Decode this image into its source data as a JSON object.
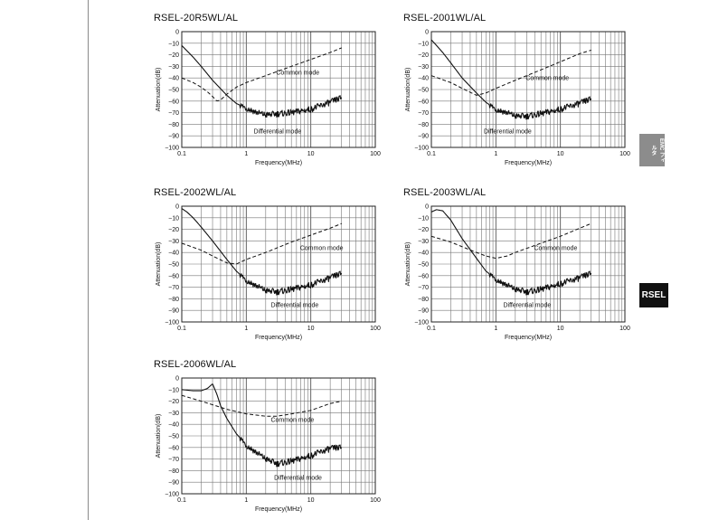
{
  "side_tabs": {
    "category": "EMC フィルタ",
    "series": "RSEL"
  },
  "chart_data": [
    {
      "type": "line",
      "title": "RSEL-20R5WL/AL",
      "xlabel": "Frequency(MHz)",
      "ylabel": "Attenuation(dB)",
      "xscale": "log",
      "xlim": [
        0.1,
        100
      ],
      "ylim": [
        -100,
        0
      ],
      "xticks": [
        "0.1",
        "1",
        "10",
        "100"
      ],
      "yticks": [
        "0",
        "−10",
        "−20",
        "−30",
        "−40",
        "−50",
        "−60",
        "−70",
        "−80",
        "−90",
        "−100"
      ],
      "series": [
        {
          "name": "Common mode",
          "style": "dashed",
          "x": [
            0.1,
            0.15,
            0.2,
            0.25,
            0.3,
            0.35,
            0.4,
            0.5,
            0.7,
            1,
            2,
            5,
            10,
            20,
            30
          ],
          "y": [
            -40,
            -44,
            -48,
            -52,
            -56,
            -60,
            -59,
            -54,
            -48,
            -44,
            -38,
            -30,
            -24,
            -18,
            -14
          ]
        },
        {
          "name": "Differential mode",
          "style": "solid",
          "x": [
            0.1,
            0.15,
            0.2,
            0.3,
            0.5,
            0.7,
            1,
            1.5,
            2,
            3,
            5,
            10,
            20,
            30
          ],
          "y": [
            -12,
            -22,
            -30,
            -42,
            -55,
            -62,
            -66,
            -70,
            -72,
            -71,
            -70,
            -67,
            -61,
            -57
          ]
        }
      ],
      "annotations": [
        {
          "text": "Common mode",
          "x": 2.9,
          "y": -35
        },
        {
          "text": "Differential mode",
          "x": 1.3,
          "y": -86
        }
      ]
    },
    {
      "type": "line",
      "title": "RSEL-2001WL/AL",
      "xlabel": "Frequency(MHz)",
      "ylabel": "Attenuation(dB)",
      "xscale": "log",
      "xlim": [
        0.1,
        100
      ],
      "ylim": [
        -100,
        0
      ],
      "xticks": [
        "0.1",
        "1",
        "10",
        "100"
      ],
      "yticks": [
        "0",
        "−10",
        "−20",
        "−30",
        "−40",
        "−50",
        "−60",
        "−70",
        "−80",
        "−90",
        "−100"
      ],
      "series": [
        {
          "name": "Common mode",
          "style": "dashed",
          "x": [
            0.1,
            0.2,
            0.3,
            0.5,
            0.7,
            1,
            2,
            5,
            10,
            20,
            30
          ],
          "y": [
            -38,
            -44,
            -49,
            -55,
            -53,
            -49,
            -42,
            -33,
            -26,
            -19,
            -16
          ]
        },
        {
          "name": "Differential mode",
          "style": "solid",
          "x": [
            0.1,
            0.15,
            0.2,
            0.3,
            0.5,
            0.7,
            1,
            1.5,
            2,
            3,
            5,
            10,
            20,
            30
          ],
          "y": [
            -7,
            -18,
            -27,
            -40,
            -53,
            -61,
            -67,
            -70,
            -73,
            -73,
            -71,
            -67,
            -62,
            -58
          ]
        }
      ],
      "annotations": [
        {
          "text": "Common mode",
          "x": 2.9,
          "y": -40
        },
        {
          "text": "Differential mode",
          "x": 0.65,
          "y": -86
        }
      ]
    },
    {
      "type": "line",
      "title": "RSEL-2002WL/AL",
      "xlabel": "Frequency(MHz)",
      "ylabel": "Attenuation(dB)",
      "xscale": "log",
      "xlim": [
        0.1,
        100
      ],
      "ylim": [
        -100,
        0
      ],
      "xticks": [
        "0.1",
        "1",
        "10",
        "100"
      ],
      "yticks": [
        "0",
        "−10",
        "−20",
        "−30",
        "−40",
        "−50",
        "−60",
        "−70",
        "−80",
        "−90",
        "−100"
      ],
      "series": [
        {
          "name": "Common mode",
          "style": "dashed",
          "x": [
            0.1,
            0.2,
            0.3,
            0.5,
            0.7,
            1,
            2,
            5,
            10,
            20,
            30
          ],
          "y": [
            -32,
            -38,
            -43,
            -49,
            -50,
            -46,
            -40,
            -31,
            -25,
            -19,
            -15
          ]
        },
        {
          "name": "Differential mode",
          "style": "solid",
          "x": [
            0.1,
            0.12,
            0.15,
            0.2,
            0.3,
            0.5,
            0.7,
            1,
            2,
            3,
            5,
            10,
            20,
            30
          ],
          "y": [
            -2,
            -5,
            -10,
            -18,
            -30,
            -46,
            -56,
            -64,
            -73,
            -74,
            -72,
            -68,
            -62,
            -58
          ]
        }
      ],
      "annotations": [
        {
          "text": "Common mode",
          "x": 6.8,
          "y": -36
        },
        {
          "text": "Differential mode",
          "x": 2.4,
          "y": -85
        }
      ]
    },
    {
      "type": "line",
      "title": "RSEL-2003WL/AL",
      "xlabel": "Frequency(MHz)",
      "ylabel": "Attenuation(dB)",
      "xscale": "log",
      "xlim": [
        0.1,
        100
      ],
      "ylim": [
        -100,
        0
      ],
      "xticks": [
        "0.1",
        "1",
        "10",
        "100"
      ],
      "yticks": [
        "0",
        "−10",
        "−20",
        "−30",
        "−40",
        "−50",
        "−60",
        "−70",
        "−80",
        "−90",
        "−100"
      ],
      "series": [
        {
          "name": "Common mode",
          "style": "dashed",
          "x": [
            0.1,
            0.2,
            0.3,
            0.5,
            0.7,
            1,
            1.5,
            2,
            5,
            10,
            20,
            30
          ],
          "y": [
            -26,
            -31,
            -35,
            -40,
            -43,
            -45,
            -43,
            -40,
            -32,
            -26,
            -19,
            -15
          ]
        },
        {
          "name": "Differential mode",
          "style": "solid",
          "x": [
            0.1,
            0.12,
            0.15,
            0.2,
            0.3,
            0.5,
            0.7,
            1,
            2,
            3,
            5,
            10,
            20,
            30
          ],
          "y": [
            -5,
            -3,
            -4,
            -12,
            -28,
            -45,
            -56,
            -63,
            -72,
            -74,
            -72,
            -67,
            -62,
            -58
          ]
        }
      ],
      "annotations": [
        {
          "text": "Common mode",
          "x": 3.9,
          "y": -36
        },
        {
          "text": "Differential mode",
          "x": 1.3,
          "y": -85
        }
      ]
    },
    {
      "type": "line",
      "title": "RSEL-2006WL/AL",
      "xlabel": "Frequency(MHz)",
      "ylabel": "Attenuation(dB)",
      "xscale": "log",
      "xlim": [
        0.1,
        100
      ],
      "ylim": [
        -100,
        0
      ],
      "xticks": [
        "0.1",
        "1",
        "10",
        "100"
      ],
      "yticks": [
        "0",
        "−10",
        "−20",
        "−30",
        "−40",
        "−50",
        "−60",
        "−70",
        "−80",
        "−90",
        "−100"
      ],
      "series": [
        {
          "name": "Common mode",
          "style": "dashed",
          "x": [
            0.1,
            0.2,
            0.5,
            1,
            2,
            3,
            5,
            10,
            20,
            30
          ],
          "y": [
            -15,
            -20,
            -27,
            -31,
            -33,
            -33,
            -31,
            -28,
            -22,
            -20
          ]
        },
        {
          "name": "Differential mode",
          "style": "solid",
          "x": [
            0.1,
            0.15,
            0.2,
            0.25,
            0.3,
            0.35,
            0.4,
            0.5,
            0.7,
            1,
            2,
            3,
            5,
            10,
            20,
            30
          ],
          "y": [
            -10,
            -11,
            -11,
            -9,
            -5,
            -14,
            -24,
            -35,
            -48,
            -58,
            -70,
            -74,
            -72,
            -67,
            -61,
            -60
          ]
        }
      ],
      "annotations": [
        {
          "text": "Common mode",
          "x": 2.4,
          "y": -36
        },
        {
          "text": "Differential mode",
          "x": 2.7,
          "y": -86
        }
      ]
    }
  ]
}
